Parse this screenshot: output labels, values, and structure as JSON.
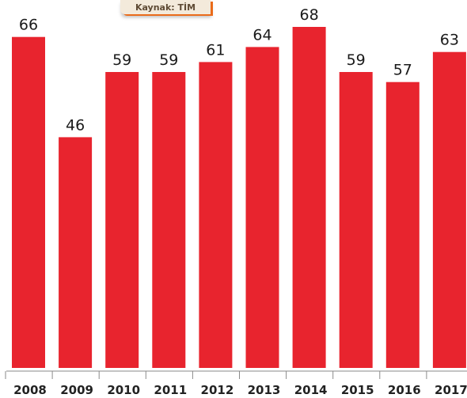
{
  "source": {
    "label": "Kaynak: TİM"
  },
  "chart_data": {
    "type": "bar",
    "title": "",
    "xlabel": "",
    "ylabel": "",
    "categories": [
      "2008",
      "2009",
      "2010",
      "2011",
      "2012",
      "2013",
      "2014",
      "2015",
      "2016",
      "2017"
    ],
    "values": [
      66,
      46,
      59,
      59,
      61,
      64,
      68,
      59,
      57,
      63
    ],
    "data_labels": [
      "66",
      "46",
      "59",
      "59",
      "61",
      "64",
      "68",
      "59",
      "57",
      "63"
    ],
    "ylim": [
      0,
      68
    ],
    "grid": false,
    "legend": "none",
    "bar_color": "#e8242e"
  }
}
